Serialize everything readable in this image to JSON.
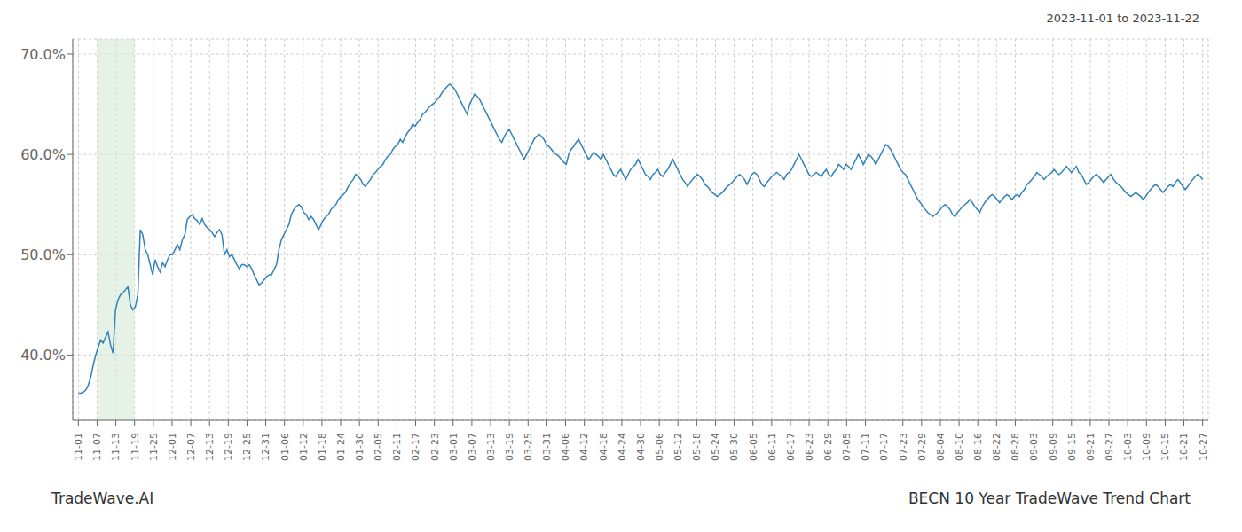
{
  "chart_data": {
    "type": "line",
    "title": "2023-11-01 to 2023-11-22",
    "annotations": [
      "TradeWave.AI",
      "BECN 10 Year TradeWave Trend Chart"
    ],
    "grid": true,
    "shaded_region": {
      "from": 7.566667,
      "to": 22.7,
      "color": "#d6ead6"
    },
    "xlim": [
      -2.27,
      456.27
    ],
    "xticks": [
      {
        "value": 0,
        "label": "11-01"
      },
      {
        "value": 7.566667,
        "label": "11-07"
      },
      {
        "value": 15.133333,
        "label": "11-13"
      },
      {
        "value": 22.7,
        "label": "11-19"
      },
      {
        "value": 30.266667,
        "label": "11-25"
      },
      {
        "value": 37.833333,
        "label": "12-01"
      },
      {
        "value": 45.4,
        "label": "12-07"
      },
      {
        "value": 52.966667,
        "label": "12-13"
      },
      {
        "value": 60.533333,
        "label": "12-19"
      },
      {
        "value": 68.1,
        "label": "12-25"
      },
      {
        "value": 75.666667,
        "label": "12-31"
      },
      {
        "value": 83.233333,
        "label": "01-06"
      },
      {
        "value": 90.8,
        "label": "01-12"
      },
      {
        "value": 98.366667,
        "label": "01-18"
      },
      {
        "value": 105.933333,
        "label": "01-24"
      },
      {
        "value": 113.5,
        "label": "01-30"
      },
      {
        "value": 121.066667,
        "label": "02-05"
      },
      {
        "value": 128.633333,
        "label": "02-11"
      },
      {
        "value": 136.2,
        "label": "02-17"
      },
      {
        "value": 143.766667,
        "label": "02-23"
      },
      {
        "value": 151.333333,
        "label": "03-01"
      },
      {
        "value": 158.9,
        "label": "03-07"
      },
      {
        "value": 166.466667,
        "label": "03-13"
      },
      {
        "value": 174.033333,
        "label": "03-19"
      },
      {
        "value": 181.6,
        "label": "03-25"
      },
      {
        "value": 189.166667,
        "label": "03-31"
      },
      {
        "value": 196.733333,
        "label": "04-06"
      },
      {
        "value": 204.3,
        "label": "04-12"
      },
      {
        "value": 211.866667,
        "label": "04-18"
      },
      {
        "value": 219.433333,
        "label": "04-24"
      },
      {
        "value": 227,
        "label": "04-30"
      },
      {
        "value": 234.566667,
        "label": "05-06"
      },
      {
        "value": 242.133333,
        "label": "05-12"
      },
      {
        "value": 249.7,
        "label": "05-18"
      },
      {
        "value": 257.266667,
        "label": "05-24"
      },
      {
        "value": 264.833333,
        "label": "05-30"
      },
      {
        "value": 272.4,
        "label": "06-05"
      },
      {
        "value": 279.966667,
        "label": "06-11"
      },
      {
        "value": 287.533333,
        "label": "06-17"
      },
      {
        "value": 295.1,
        "label": "06-23"
      },
      {
        "value": 302.666667,
        "label": "06-29"
      },
      {
        "value": 310.233333,
        "label": "07-05"
      },
      {
        "value": 317.8,
        "label": "07-11"
      },
      {
        "value": 325.366667,
        "label": "07-17"
      },
      {
        "value": 332.933333,
        "label": "07-23"
      },
      {
        "value": 340.5,
        "label": "07-29"
      },
      {
        "value": 348.066667,
        "label": "08-04"
      },
      {
        "value": 355.633333,
        "label": "08-10"
      },
      {
        "value": 363.2,
        "label": "08-16"
      },
      {
        "value": 370.766667,
        "label": "08-22"
      },
      {
        "value": 378.333333,
        "label": "08-28"
      },
      {
        "value": 385.9,
        "label": "09-03"
      },
      {
        "value": 393.466667,
        "label": "09-09"
      },
      {
        "value": 401.033333,
        "label": "09-15"
      },
      {
        "value": 408.6,
        "label": "09-21"
      },
      {
        "value": 416.166667,
        "label": "09-27"
      },
      {
        "value": 423.733333,
        "label": "10-03"
      },
      {
        "value": 431.3,
        "label": "10-09"
      },
      {
        "value": 438.866667,
        "label": "10-15"
      },
      {
        "value": 446.433333,
        "label": "10-21"
      },
      {
        "value": 454,
        "label": "10-27"
      }
    ],
    "ylim": [
      0.335,
      0.715
    ],
    "yticks": [
      {
        "value": 0.4,
        "label": "40.0%"
      },
      {
        "value": 0.5,
        "label": "50.0%"
      },
      {
        "value": 0.6,
        "label": "60.0%"
      },
      {
        "value": 0.7,
        "label": "70.0%"
      }
    ],
    "x": [
      0,
      1,
      2,
      3,
      4,
      5,
      6,
      7,
      8,
      9,
      10,
      11,
      12,
      13,
      14,
      15,
      16,
      17,
      18,
      19,
      20,
      21,
      22,
      23,
      24,
      25,
      26,
      27,
      28,
      29,
      30,
      31,
      32,
      33,
      34,
      35,
      36,
      37,
      38,
      39,
      40,
      41,
      42,
      43,
      44,
      45,
      46,
      47,
      48,
      49,
      50,
      51,
      52,
      53,
      54,
      55,
      56,
      57,
      58,
      59,
      60,
      61,
      62,
      63,
      64,
      65,
      66,
      67,
      68,
      69,
      70,
      71,
      72,
      73,
      74,
      75,
      76,
      77,
      78,
      79,
      80,
      81,
      82,
      83,
      84,
      85,
      86,
      87,
      88,
      89,
      90,
      91,
      92,
      93,
      94,
      95,
      96,
      97,
      98,
      99,
      100,
      101,
      102,
      103,
      104,
      105,
      106,
      107,
      108,
      109,
      110,
      111,
      112,
      113,
      114,
      115,
      116,
      117,
      118,
      119,
      120,
      121,
      122,
      123,
      124,
      125,
      126,
      127,
      128,
      129,
      130,
      131,
      132,
      133,
      134,
      135,
      136,
      137,
      138,
      139,
      140,
      141,
      142,
      143,
      144,
      145,
      146,
      147,
      148,
      149,
      150,
      151,
      152,
      153,
      154,
      155,
      156,
      157,
      158,
      159,
      160,
      161,
      162,
      163,
      164,
      165,
      166,
      167,
      168,
      169,
      170,
      171,
      172,
      173,
      174,
      175,
      176,
      177,
      178,
      179,
      180,
      181,
      182,
      183,
      184,
      185,
      186,
      187,
      188,
      189,
      190,
      191,
      192,
      193,
      194,
      195,
      196,
      197,
      198,
      199,
      200,
      201,
      202,
      203,
      204,
      205,
      206,
      207,
      208,
      209,
      210,
      211,
      212,
      213,
      214,
      215,
      216,
      217,
      218,
      219,
      220,
      221,
      222,
      223,
      224,
      225,
      226,
      227,
      228,
      229,
      230,
      231,
      232,
      233,
      234,
      235,
      236,
      237,
      238,
      239,
      240,
      241,
      242,
      243,
      244,
      245,
      246,
      247,
      248,
      249,
      250,
      251,
      252,
      253,
      254,
      255,
      256,
      257,
      258,
      259,
      260,
      261,
      262,
      263,
      264,
      265,
      266,
      267,
      268,
      269,
      270,
      271,
      272,
      273,
      274,
      275,
      276,
      277,
      278,
      279,
      280,
      281,
      282,
      283,
      284,
      285,
      286,
      287,
      288,
      289,
      290,
      291,
      292,
      293,
      294,
      295,
      296,
      297,
      298,
      299,
      300,
      301,
      302,
      303,
      304,
      305,
      306,
      307,
      308,
      309,
      310,
      311,
      312,
      313,
      314,
      315,
      316,
      317,
      318,
      319,
      320,
      321,
      322,
      323,
      324,
      325,
      326,
      327,
      328,
      329,
      330,
      331,
      332,
      333,
      334,
      335,
      336,
      337,
      338,
      339,
      340,
      341,
      342,
      343,
      344,
      345,
      346,
      347,
      348,
      349,
      350,
      351,
      352,
      353,
      354,
      355,
      356,
      357,
      358,
      359,
      360,
      361,
      362,
      363,
      364,
      365,
      366,
      367,
      368,
      369,
      370,
      371,
      372,
      373,
      374,
      375,
      376,
      377,
      378,
      379,
      380,
      381,
      382,
      383,
      384,
      385,
      386,
      387,
      388,
      389,
      390,
      391,
      392,
      393,
      394,
      395,
      396,
      397,
      398,
      399,
      400,
      401,
      402,
      403,
      404,
      405,
      406,
      407,
      408,
      409,
      410,
      411,
      412,
      413,
      414,
      415,
      416,
      417,
      418,
      419,
      420,
      421,
      422,
      423,
      424,
      425,
      426,
      427,
      428,
      429,
      430,
      431,
      432,
      433,
      434,
      435,
      436,
      437,
      438,
      439,
      440,
      441,
      442,
      443,
      444,
      445,
      446,
      447,
      448,
      449,
      450,
      451,
      452,
      453,
      454
    ],
    "values": [
      0.362,
      0.362,
      0.363,
      0.365,
      0.37,
      0.378,
      0.39,
      0.4,
      0.408,
      0.415,
      0.412,
      0.418,
      0.423,
      0.41,
      0.402,
      0.445,
      0.455,
      0.46,
      0.462,
      0.465,
      0.468,
      0.45,
      0.445,
      0.448,
      0.46,
      0.525,
      0.52,
      0.505,
      0.5,
      0.49,
      0.48,
      0.495,
      0.488,
      0.483,
      0.492,
      0.488,
      0.495,
      0.5,
      0.5,
      0.505,
      0.51,
      0.505,
      0.515,
      0.52,
      0.535,
      0.538,
      0.54,
      0.536,
      0.534,
      0.53,
      0.536,
      0.53,
      0.527,
      0.525,
      0.522,
      0.518,
      0.522,
      0.525,
      0.52,
      0.5,
      0.505,
      0.498,
      0.5,
      0.495,
      0.49,
      0.486,
      0.49,
      0.49,
      0.488,
      0.49,
      0.486,
      0.48,
      0.475,
      0.47,
      0.472,
      0.475,
      0.478,
      0.48,
      0.48,
      0.485,
      0.49,
      0.505,
      0.515,
      0.52,
      0.525,
      0.53,
      0.54,
      0.545,
      0.548,
      0.55,
      0.548,
      0.542,
      0.54,
      0.535,
      0.538,
      0.535,
      0.53,
      0.525,
      0.53,
      0.535,
      0.538,
      0.54,
      0.545,
      0.548,
      0.55,
      0.555,
      0.558,
      0.56,
      0.563,
      0.568,
      0.572,
      0.575,
      0.58,
      0.578,
      0.575,
      0.57,
      0.568,
      0.572,
      0.575,
      0.58,
      0.582,
      0.585,
      0.588,
      0.59,
      0.595,
      0.598,
      0.6,
      0.605,
      0.608,
      0.61,
      0.615,
      0.612,
      0.618,
      0.622,
      0.625,
      0.63,
      0.628,
      0.632,
      0.635,
      0.64,
      0.642,
      0.645,
      0.648,
      0.65,
      0.652,
      0.655,
      0.658,
      0.662,
      0.665,
      0.668,
      0.67,
      0.668,
      0.665,
      0.66,
      0.655,
      0.65,
      0.645,
      0.64,
      0.65,
      0.655,
      0.66,
      0.658,
      0.655,
      0.65,
      0.645,
      0.64,
      0.635,
      0.63,
      0.625,
      0.62,
      0.615,
      0.612,
      0.618,
      0.622,
      0.625,
      0.62,
      0.615,
      0.61,
      0.605,
      0.6,
      0.595,
      0.6,
      0.605,
      0.61,
      0.615,
      0.618,
      0.62,
      0.618,
      0.615,
      0.61,
      0.608,
      0.605,
      0.602,
      0.6,
      0.598,
      0.595,
      0.592,
      0.59,
      0.6,
      0.605,
      0.608,
      0.612,
      0.615,
      0.61,
      0.605,
      0.6,
      0.595,
      0.598,
      0.602,
      0.6,
      0.598,
      0.595,
      0.6,
      0.595,
      0.59,
      0.585,
      0.58,
      0.578,
      0.582,
      0.585,
      0.58,
      0.575,
      0.58,
      0.585,
      0.588,
      0.59,
      0.595,
      0.59,
      0.585,
      0.58,
      0.578,
      0.575,
      0.58,
      0.582,
      0.585,
      0.58,
      0.578,
      0.582,
      0.585,
      0.59,
      0.595,
      0.59,
      0.585,
      0.58,
      0.575,
      0.572,
      0.568,
      0.572,
      0.575,
      0.578,
      0.58,
      0.578,
      0.575,
      0.57,
      0.568,
      0.565,
      0.562,
      0.56,
      0.558,
      0.56,
      0.562,
      0.565,
      0.568,
      0.57,
      0.572,
      0.575,
      0.578,
      0.58,
      0.578,
      0.575,
      0.57,
      0.575,
      0.58,
      0.582,
      0.58,
      0.575,
      0.57,
      0.568,
      0.572,
      0.575,
      0.578,
      0.58,
      0.582,
      0.58,
      0.578,
      0.575,
      0.58,
      0.582,
      0.585,
      0.59,
      0.595,
      0.6,
      0.595,
      0.59,
      0.585,
      0.58,
      0.578,
      0.58,
      0.582,
      0.58,
      0.578,
      0.582,
      0.585,
      0.58,
      0.578,
      0.582,
      0.585,
      0.59,
      0.588,
      0.585,
      0.59,
      0.588,
      0.585,
      0.59,
      0.595,
      0.6,
      0.595,
      0.59,
      0.595,
      0.6,
      0.598,
      0.595,
      0.59,
      0.595,
      0.6,
      0.605,
      0.61,
      0.608,
      0.605,
      0.6,
      0.595,
      0.59,
      0.585,
      0.582,
      0.58,
      0.575,
      0.57,
      0.565,
      0.56,
      0.555,
      0.552,
      0.548,
      0.545,
      0.542,
      0.54,
      0.538,
      0.54,
      0.542,
      0.545,
      0.548,
      0.55,
      0.548,
      0.545,
      0.54,
      0.538,
      0.542,
      0.545,
      0.548,
      0.55,
      0.552,
      0.555,
      0.552,
      0.548,
      0.545,
      0.542,
      0.548,
      0.552,
      0.555,
      0.558,
      0.56,
      0.558,
      0.555,
      0.552,
      0.555,
      0.558,
      0.56,
      0.558,
      0.555,
      0.558,
      0.56,
      0.558,
      0.562,
      0.565,
      0.57,
      0.572,
      0.575,
      0.578,
      0.582,
      0.58,
      0.578,
      0.575,
      0.578,
      0.58,
      0.582,
      0.585,
      0.582,
      0.58,
      0.582,
      0.585,
      0.588,
      0.585,
      0.582,
      0.585,
      0.588,
      0.582,
      0.58,
      0.575,
      0.57,
      0.572,
      0.575,
      0.578,
      0.58,
      0.578,
      0.575,
      0.572,
      0.575,
      0.578,
      0.58,
      0.575,
      0.572,
      0.57,
      0.568,
      0.565,
      0.562,
      0.56,
      0.558,
      0.56,
      0.562,
      0.56,
      0.558,
      0.555,
      0.558,
      0.562,
      0.565,
      0.568,
      0.57,
      0.568,
      0.565,
      0.562,
      0.565,
      0.568,
      0.57,
      0.568,
      0.572,
      0.575,
      0.572,
      0.568,
      0.565,
      0.568,
      0.572,
      0.575,
      0.578,
      0.58,
      0.578,
      0.575
    ]
  }
}
